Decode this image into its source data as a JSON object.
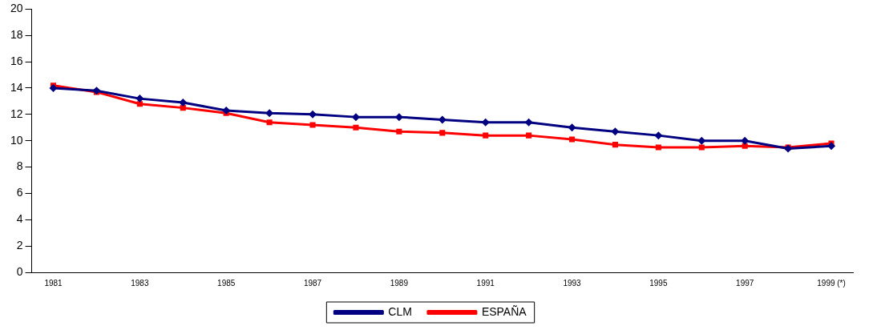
{
  "chart_data": {
    "type": "line",
    "categories": [
      "1981",
      null,
      "1983",
      null,
      "1985",
      null,
      "1987",
      null,
      "1989",
      null,
      "1991",
      null,
      "1993",
      null,
      "1995",
      null,
      "1997",
      null,
      "1999 (*)"
    ],
    "series": [
      {
        "name": "CLM",
        "color": "#000080",
        "marker": "diamond",
        "values": [
          14.0,
          13.8,
          13.2,
          12.9,
          12.3,
          12.1,
          12.0,
          11.8,
          11.8,
          11.6,
          11.4,
          11.4,
          11.0,
          10.7,
          10.4,
          10.0,
          10.0,
          9.4,
          9.6
        ]
      },
      {
        "name": "ESPAÑA",
        "color": "#ff0000",
        "marker": "square",
        "values": [
          14.2,
          13.7,
          12.8,
          12.5,
          12.1,
          11.4,
          11.2,
          11.0,
          10.7,
          10.6,
          10.4,
          10.4,
          10.1,
          9.7,
          9.5,
          9.5,
          9.6,
          9.5,
          9.8
        ]
      }
    ],
    "ylim": [
      0,
      20
    ],
    "yticks": [
      0,
      2,
      4,
      6,
      8,
      10,
      12,
      14,
      16,
      18,
      20
    ],
    "grid": false,
    "legend": "bottom",
    "line_style": "solid"
  }
}
